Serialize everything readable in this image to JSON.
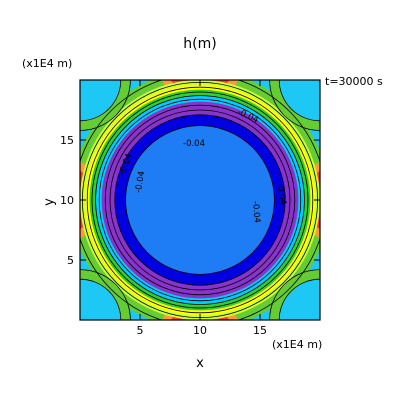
{
  "chart_data": {
    "type": "heatmap",
    "title": "h(m)",
    "xlabel": "x",
    "ylabel": "y",
    "x_units": "(x1E4 m)",
    "y_units": "(x1E4 m)",
    "time_label": "t=30000 s",
    "xlim": [
      0,
      20
    ],
    "ylim": [
      0,
      20
    ],
    "xticks": [
      5,
      10,
      15
    ],
    "yticks": [
      5,
      10,
      15
    ],
    "grid": false,
    "contour_labels": [
      {
        "text": "-0.04",
        "x": 14.0,
        "y": 17.0,
        "angle": 25
      },
      {
        "text": "-0.04",
        "x": 3.8,
        "y": 13.0,
        "angle": -70
      },
      {
        "text": "-0.04",
        "x": 5.0,
        "y": 11.5,
        "angle": -80
      },
      {
        "text": "-0.04",
        "x": 9.5,
        "y": 14.7,
        "angle": 0
      },
      {
        "text": "-0.04",
        "x": 16.8,
        "y": 10.5,
        "angle": 80
      },
      {
        "text": "-0.04",
        "x": 14.7,
        "y": 9.0,
        "angle": 85
      }
    ],
    "rings": [
      {
        "r": 10.8,
        "color": "#66cc33"
      },
      {
        "r": 10.0,
        "color": "#ccff33"
      },
      {
        "r": 9.6,
        "color": "#ffff00"
      },
      {
        "r": 9.2,
        "color": "#33cc33"
      },
      {
        "r": 8.7,
        "color": "#00ccff"
      },
      {
        "r": 8.2,
        "color": "#8833cc"
      },
      {
        "r": 7.1,
        "color": "#0000e0"
      },
      {
        "r": 6.2,
        "color": "#1e7cf5"
      }
    ],
    "contour_radii": [
      10.5,
      9.8,
      9.4,
      9.0,
      8.7,
      8.4,
      7.9,
      7.5,
      7.1,
      6.2
    ],
    "background_color": "#1ec8f5",
    "corner_color": "#ff3333",
    "corner_edge_color": "#ff9933"
  }
}
